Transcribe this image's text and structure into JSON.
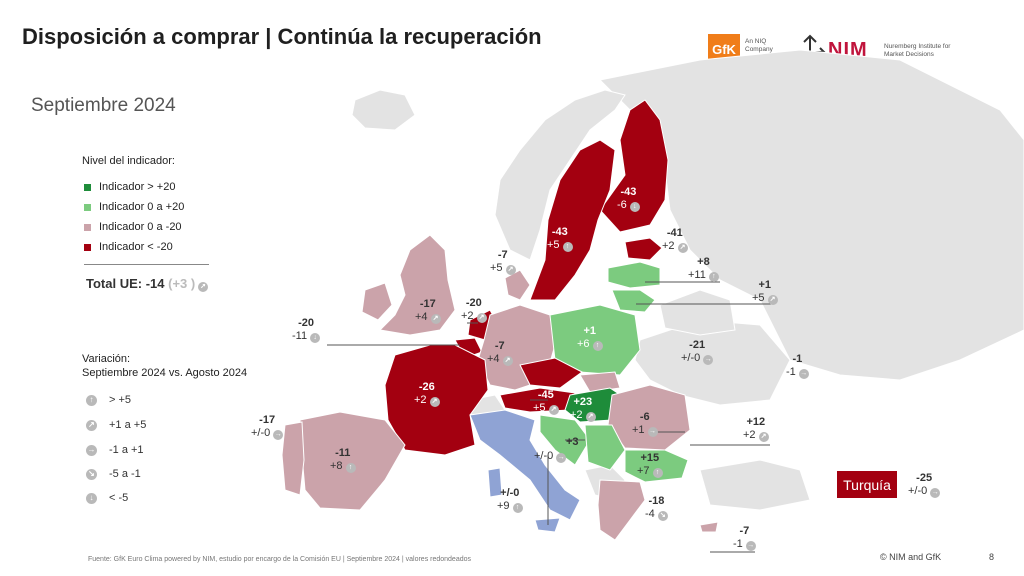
{
  "title": "Disposición a comprar | Continúa la recuperación",
  "subtitle": "Septiembre 2024",
  "logos": {
    "gfk": "GfK",
    "gfk_sub": "An NIQ Company",
    "nim": "NIM",
    "nim_sub": "Nuremberg Institute for Market Decisions"
  },
  "legend": {
    "title": "Nivel del indicador:",
    "items": [
      {
        "label": "Indicador > +20",
        "color": "#1e8c3a"
      },
      {
        "label": "Indicador 0 a +20",
        "color": "#7ccb7f"
      },
      {
        "label": "Indicador 0 a -20",
        "color": "#cba3aa"
      },
      {
        "label": "Indicador < -20",
        "color": "#a30010"
      }
    ]
  },
  "total": {
    "label": "Total UE: -14",
    "change": "(+3 )"
  },
  "variation": {
    "title_line1": "Variación:",
    "title_line2": "Septiembre 2024 vs. Agosto 2024",
    "items": [
      {
        "label": "> +5",
        "icon": "arrow-up-icon"
      },
      {
        "label": "+1 a +5",
        "icon": "arrow-up-right-icon"
      },
      {
        "label": "-1 a +1",
        "icon": "arrow-right-icon"
      },
      {
        "label": "-5 a -1",
        "icon": "arrow-down-right-icon"
      },
      {
        "label": "< -5",
        "icon": "arrow-down-icon"
      }
    ]
  },
  "countries": [
    {
      "id": "finland",
      "value": "-43",
      "change": "-6",
      "icon": "arrow-down-icon"
    },
    {
      "id": "sweden",
      "value": "-43",
      "change": "+5",
      "icon": "arrow-up-icon"
    },
    {
      "id": "estonia",
      "value": "-41",
      "change": "+2",
      "icon": "arrow-up-right-icon"
    },
    {
      "id": "latvia",
      "value": "+8",
      "change": "+11",
      "icon": "arrow-up-icon"
    },
    {
      "id": "lithuania",
      "value": "+1",
      "change": "+5",
      "icon": "arrow-up-right-icon"
    },
    {
      "id": "denmark",
      "value": "-7",
      "change": "+5",
      "icon": "arrow-up-right-icon"
    },
    {
      "id": "ireland",
      "value": "-17",
      "change": "+4",
      "icon": "arrow-up-right-icon"
    },
    {
      "id": "netherlands",
      "value": "-20",
      "change": "+2",
      "icon": "arrow-up-right-icon"
    },
    {
      "id": "belgium",
      "value": "-20",
      "change": "-11",
      "icon": "arrow-down-icon"
    },
    {
      "id": "germany",
      "value": "-7",
      "change": "+4",
      "icon": "arrow-up-right-icon"
    },
    {
      "id": "poland",
      "value": "+1",
      "change": "+6",
      "icon": "arrow-up-icon"
    },
    {
      "id": "ukraine",
      "value": "-21",
      "change": "+/-0",
      "icon": "arrow-right-icon"
    },
    {
      "id": "russia",
      "value": "-1",
      "change": "-1",
      "icon": "arrow-right-icon"
    },
    {
      "id": "france",
      "value": "-26",
      "change": "+2",
      "icon": "arrow-up-right-icon"
    },
    {
      "id": "austria",
      "value": "-45",
      "change": "+5",
      "icon": "arrow-up-right-icon"
    },
    {
      "id": "hungary",
      "value": "+23",
      "change": "+2",
      "icon": "arrow-up-right-icon"
    },
    {
      "id": "romania",
      "value": "-6",
      "change": "+1",
      "icon": "arrow-right-icon"
    },
    {
      "id": "moldova",
      "value": "+12",
      "change": "+2",
      "icon": "arrow-up-right-icon"
    },
    {
      "id": "portugal",
      "value": "-17",
      "change": "+/-0",
      "icon": "arrow-right-icon"
    },
    {
      "id": "spain",
      "value": "-11",
      "change": "+8",
      "icon": "arrow-up-icon"
    },
    {
      "id": "croatia",
      "value": "+3",
      "change": "",
      "icon": ""
    },
    {
      "id": "slovenia",
      "value": "",
      "change": "+/-0",
      "icon": "arrow-right-icon"
    },
    {
      "id": "bulgaria",
      "value": "+15",
      "change": "+7",
      "icon": "arrow-up-icon"
    },
    {
      "id": "italy",
      "value": "+/-0",
      "change": "+9",
      "icon": "arrow-up-icon"
    },
    {
      "id": "greece",
      "value": "-18",
      "change": "-4",
      "icon": "arrow-down-right-icon"
    },
    {
      "id": "cyprus",
      "value": "-7",
      "change": "-1",
      "icon": "arrow-right-icon"
    },
    {
      "id": "turkey",
      "value": "-25",
      "change": "+/-0",
      "icon": "arrow-right-icon"
    }
  ],
  "turkey_label": "Turquía",
  "footer": "Fuente: GfK Euro Clima powered by NIM, estudio por encargo de la Comisión EU | Septiembre 2024 | valores redondeados",
  "copyright": "© NIM and GfK",
  "page_number": "8",
  "colors": {
    "strong_positive": "#1e8c3a",
    "positive": "#7ccb7f",
    "slight_negative": "#cba3aa",
    "strong_negative": "#a30010",
    "italy": "#8fa3d4",
    "no_data": "#e3e3e3",
    "arrow": "#b9b9b9"
  }
}
